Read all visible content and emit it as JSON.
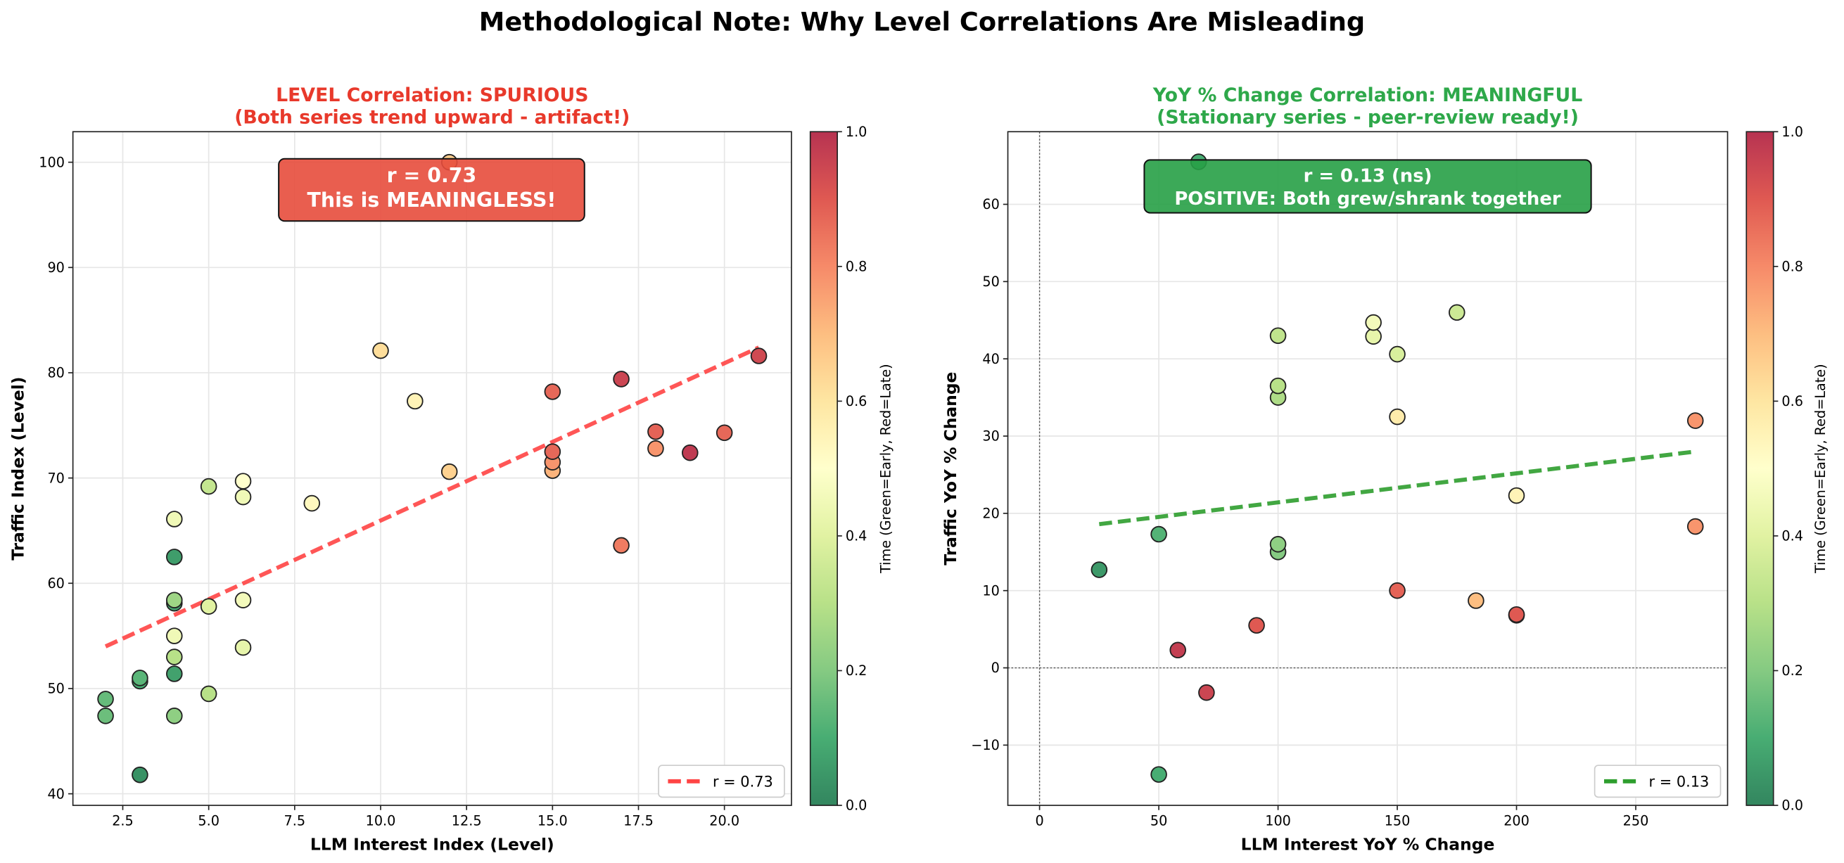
{
  "figure_title": "Methodological Note: Why Level Correlations Are Misleading",
  "chart_data": [
    {
      "type": "scatter",
      "title": [
        "LEVEL Correlation: SPURIOUS",
        "(Both series trend upward - artifact!)"
      ],
      "title_color": "#e8392b",
      "xlabel": "LLM Interest Index (Level)",
      "ylabel": "Traffic Index (Level)",
      "xlim": [
        1.05,
        21.95
      ],
      "ylim": [
        38.9,
        102.9
      ],
      "xticks": [
        2.5,
        5.0,
        7.5,
        10.0,
        12.5,
        15.0,
        17.5,
        20.0
      ],
      "xtick_labels": [
        "2.5",
        "5.0",
        "7.5",
        "10.0",
        "12.5",
        "15.0",
        "17.5",
        "20.0"
      ],
      "yticks": [
        40,
        50,
        60,
        70,
        80,
        90,
        100
      ],
      "ytick_labels": [
        "40",
        "50",
        "60",
        "70",
        "80",
        "90",
        "100"
      ],
      "grid": true,
      "colormap": "RdYlGn_r",
      "colorbar": {
        "label": "Time (Green=Early, Red=Late)",
        "range": [
          0,
          1
        ],
        "ticks": [
          "0.0",
          "0.2",
          "0.4",
          "0.6",
          "0.8",
          "1.0"
        ]
      },
      "points": [
        {
          "x": 3,
          "y": 41.8,
          "t": 0.03
        },
        {
          "x": 4,
          "y": 62.5,
          "t": 0.06
        },
        {
          "x": 4,
          "y": 51.4,
          "t": 0.07
        },
        {
          "x": 4,
          "y": 58.1,
          "t": 0.08
        },
        {
          "x": 3,
          "y": 50.7,
          "t": 0.1
        },
        {
          "x": 3,
          "y": 51.0,
          "t": 0.13
        },
        {
          "x": 2,
          "y": 49.0,
          "t": 0.15
        },
        {
          "x": 2,
          "y": 47.4,
          "t": 0.16
        },
        {
          "x": 4,
          "y": 47.4,
          "t": 0.22
        },
        {
          "x": 4,
          "y": 58.4,
          "t": 0.25
        },
        {
          "x": 4,
          "y": 53.0,
          "t": 0.3
        },
        {
          "x": 5,
          "y": 49.5,
          "t": 0.3
        },
        {
          "x": 5,
          "y": 69.2,
          "t": 0.33
        },
        {
          "x": 5,
          "y": 57.8,
          "t": 0.4
        },
        {
          "x": 6,
          "y": 53.9,
          "t": 0.42
        },
        {
          "x": 4,
          "y": 66.1,
          "t": 0.45
        },
        {
          "x": 4,
          "y": 55.0,
          "t": 0.45
        },
        {
          "x": 6,
          "y": 68.2,
          "t": 0.45
        },
        {
          "x": 6,
          "y": 58.4,
          "t": 0.46
        },
        {
          "x": 6,
          "y": 69.7,
          "t": 0.5
        },
        {
          "x": 8,
          "y": 67.6,
          "t": 0.53
        },
        {
          "x": 11,
          "y": 77.3,
          "t": 0.55
        },
        {
          "x": 10,
          "y": 82.1,
          "t": 0.62
        },
        {
          "x": 12,
          "y": 70.6,
          "t": 0.65
        },
        {
          "x": 12,
          "y": 100.0,
          "t": 0.66
        },
        {
          "x": 15,
          "y": 70.7,
          "t": 0.72
        },
        {
          "x": 15,
          "y": 71.5,
          "t": 0.78
        },
        {
          "x": 18,
          "y": 72.8,
          "t": 0.78
        },
        {
          "x": 17,
          "y": 63.6,
          "t": 0.83
        },
        {
          "x": 15,
          "y": 78.2,
          "t": 0.87
        },
        {
          "x": 15,
          "y": 72.5,
          "t": 0.87
        },
        {
          "x": 20,
          "y": 74.3,
          "t": 0.87
        },
        {
          "x": 18,
          "y": 74.4,
          "t": 0.88
        },
        {
          "x": 21,
          "y": 81.6,
          "t": 0.94
        },
        {
          "x": 17,
          "y": 79.4,
          "t": 0.95
        },
        {
          "x": 19,
          "y": 72.4,
          "t": 0.98
        }
      ],
      "trendline": {
        "x": [
          2,
          21
        ],
        "y": [
          54.0,
          82.4
        ],
        "color": "#ff4444",
        "label": "r = 0.73"
      },
      "annotation": {
        "lines": [
          "r = 0.73",
          "This is MEANINGLESS!"
        ],
        "color": "#e74c3c"
      },
      "legend": "lower right"
    },
    {
      "type": "scatter",
      "title": [
        "YoY % Change Correlation: MEANINGFUL",
        "(Stationary series - peer-review ready!)"
      ],
      "title_color": "#2ea84a",
      "xlabel": "LLM Interest YoY % Change",
      "ylabel": "Traffic YoY % Change",
      "xlim": [
        -13.3,
        288.5
      ],
      "ylim": [
        -17.8,
        69.4
      ],
      "xticks": [
        0,
        50,
        100,
        150,
        200,
        250
      ],
      "xtick_labels": [
        "0",
        "50",
        "100",
        "150",
        "200",
        "250"
      ],
      "yticks": [
        -10,
        0,
        10,
        20,
        30,
        40,
        50,
        60
      ],
      "ytick_labels": [
        "−10",
        "0",
        "10",
        "20",
        "30",
        "40",
        "50",
        "60"
      ],
      "grid": true,
      "zero_lines": true,
      "colormap": "RdYlGn_r",
      "colorbar": {
        "label": "Time (Green=Early, Red=Late)",
        "range": [
          0,
          1
        ],
        "ticks": [
          "0.0",
          "0.2",
          "0.4",
          "0.6",
          "0.8",
          "1.0"
        ]
      },
      "points": [
        {
          "x": 25,
          "y": 12.7,
          "t": 0.05
        },
        {
          "x": 66.7,
          "y": 65.5,
          "t": 0.1
        },
        {
          "x": 50,
          "y": -13.8,
          "t": 0.1
        },
        {
          "x": 50,
          "y": 17.3,
          "t": 0.12
        },
        {
          "x": 100,
          "y": 15.0,
          "t": 0.2
        },
        {
          "x": 100,
          "y": 16.0,
          "t": 0.22
        },
        {
          "x": 100,
          "y": 35.0,
          "t": 0.28
        },
        {
          "x": 100,
          "y": 36.5,
          "t": 0.3
        },
        {
          "x": 100,
          "y": 43.0,
          "t": 0.32
        },
        {
          "x": 175,
          "y": 46.0,
          "t": 0.35
        },
        {
          "x": 150,
          "y": 40.6,
          "t": 0.38
        },
        {
          "x": 140,
          "y": 42.9,
          "t": 0.42
        },
        {
          "x": 140,
          "y": 44.7,
          "t": 0.46
        },
        {
          "x": 200,
          "y": 22.3,
          "t": 0.55
        },
        {
          "x": 150,
          "y": 32.5,
          "t": 0.58
        },
        {
          "x": 183,
          "y": 8.7,
          "t": 0.7
        },
        {
          "x": 275,
          "y": 32.0,
          "t": 0.78
        },
        {
          "x": 275,
          "y": 18.3,
          "t": 0.78
        },
        {
          "x": 200,
          "y": 6.8,
          "t": 0.85
        },
        {
          "x": 150,
          "y": 10.0,
          "t": 0.88
        },
        {
          "x": 91,
          "y": 5.5,
          "t": 0.9
        },
        {
          "x": 200,
          "y": 6.9,
          "t": 0.9
        },
        {
          "x": 70,
          "y": -3.2,
          "t": 0.95
        },
        {
          "x": 58,
          "y": 2.3,
          "t": 0.97
        }
      ],
      "trendline": {
        "x": [
          25,
          275
        ],
        "y": [
          18.6,
          28.0
        ],
        "color": "#2e9e2e",
        "label": "r = 0.13"
      },
      "annotation": {
        "lines": [
          "r = 0.13 (ns)",
          "POSITIVE: Both grew/shrank together"
        ],
        "color": "#27a046"
      },
      "legend": "lower right"
    }
  ]
}
